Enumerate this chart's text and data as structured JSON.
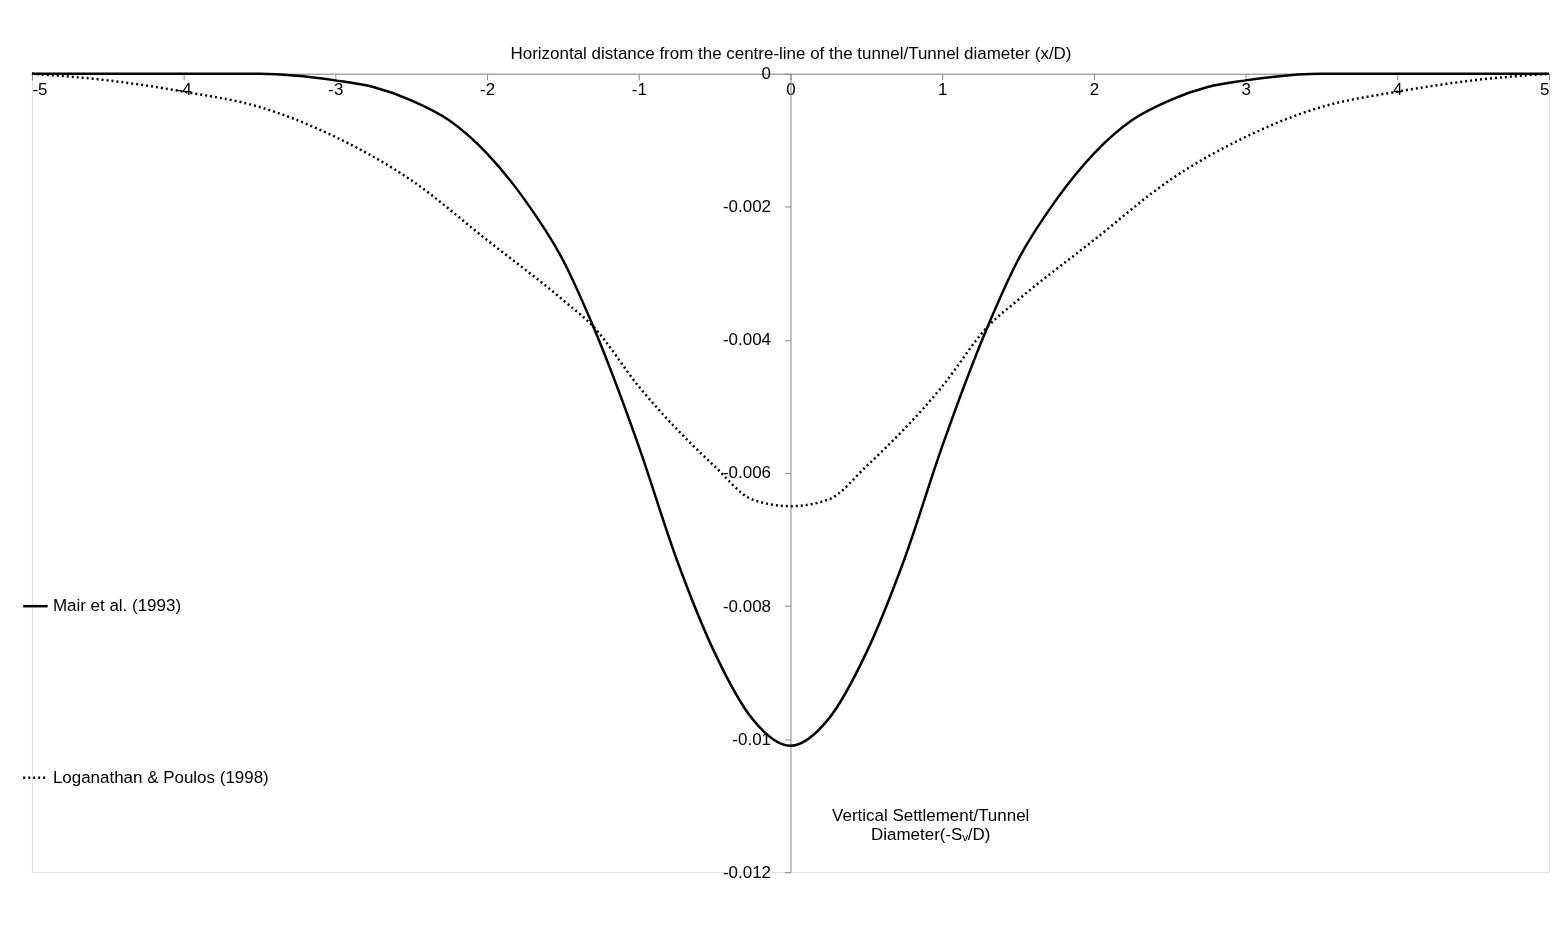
{
  "chart_data": {
    "type": "line",
    "xlabel": "Horizontal distance from the centre-line of the tunnel/Tunnel  diameter (x/D)",
    "ylabel": "Vertical Settlement/Tunnel Diameter(-Sᵥ/D)",
    "xlim": [
      -5,
      5
    ],
    "xticks": [
      -5,
      -4,
      -3,
      -2,
      -1,
      0,
      1,
      2,
      3,
      4,
      5
    ],
    "ylim": [
      -0.012,
      0
    ],
    "yticks": [
      0,
      -0.002,
      -0.004,
      -0.006,
      -0.008,
      {
        "value": -0.01,
        "label": "-0.01"
      },
      -0.012
    ],
    "grid": false,
    "legend": "left",
    "marker": "none",
    "series": [
      {
        "name": "Mair et al. (1993)",
        "color": "#000000",
        "line_style": "solid",
        "x": [
          -5,
          -4,
          -3.5,
          -3,
          -2.75,
          -2.5,
          -2.25,
          -2,
          -1.75,
          -1.5,
          -1.3,
          -1,
          -0.75,
          -0.5,
          -0.25,
          0,
          0.25,
          0.5,
          0.75,
          1,
          1.3,
          1.5,
          1.75,
          2,
          2.25,
          2.5,
          2.75,
          3,
          3.5,
          4,
          5
        ],
        "values": [
          0,
          0,
          0,
          -0.0001,
          -0.0002,
          -0.0004,
          -0.0007,
          -0.0012,
          -0.0019,
          -0.0028,
          -0.0038,
          -0.0056,
          -0.0073,
          -0.0087,
          -0.0097,
          -0.0101,
          -0.0097,
          -0.0087,
          -0.0073,
          -0.0056,
          -0.0038,
          -0.0028,
          -0.0019,
          -0.0012,
          -0.0007,
          -0.0004,
          -0.0002,
          -0.0001,
          0,
          0,
          0
        ]
      },
      {
        "name": "Loganathan & Poulos (1998)",
        "color": "#000000",
        "line_style": "dotted",
        "x": [
          -5,
          -4.5,
          -4,
          -3.5,
          -3,
          -2.5,
          -2,
          -1.5,
          -1.3,
          -1,
          -0.5,
          -0.25,
          0,
          0.25,
          0.5,
          1,
          1.3,
          1.5,
          2,
          2.5,
          3,
          3.5,
          4,
          4.5,
          5
        ],
        "values": [
          0,
          -0.0001,
          -0.00027,
          -0.0005,
          -0.00095,
          -0.0016,
          -0.0025,
          -0.0034,
          -0.0038,
          -0.0047,
          -0.0059,
          -0.0064,
          -0.0065,
          -0.0064,
          -0.0059,
          -0.0047,
          -0.0038,
          -0.0034,
          -0.0025,
          -0.0016,
          -0.00095,
          -0.0005,
          -0.00027,
          -0.0001,
          0
        ]
      }
    ]
  }
}
